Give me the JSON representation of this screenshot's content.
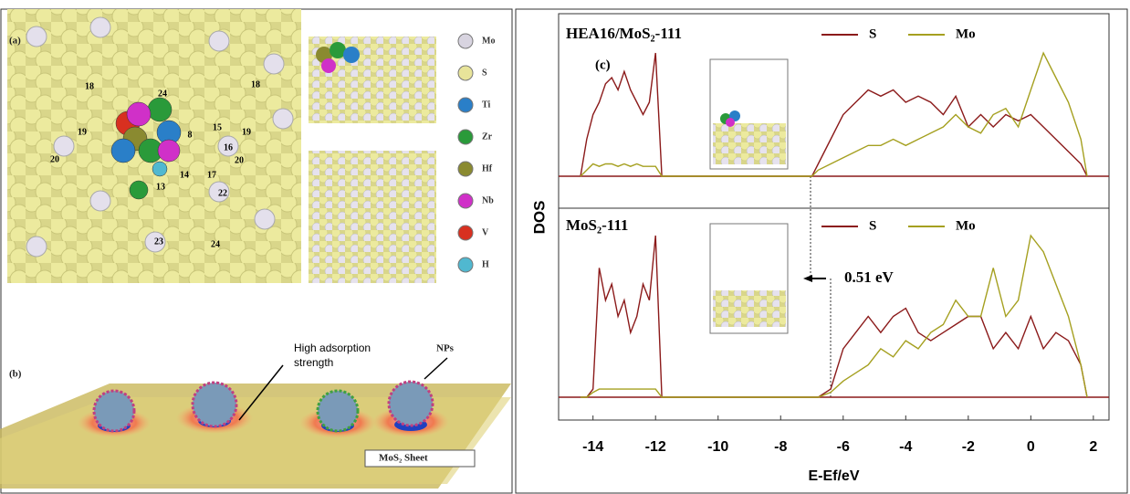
{
  "panel_a": {
    "label": "(a)",
    "site_labels": [
      "18",
      "24",
      "18",
      "19",
      "15",
      "19",
      "16",
      "20",
      "8",
      "17",
      "22",
      "14",
      "13",
      "20",
      "23",
      "24"
    ],
    "elements": [
      {
        "name": "Mo",
        "color": "#d8d4e0"
      },
      {
        "name": "S",
        "color": "#e8e49a"
      },
      {
        "name": "Ti",
        "color": "#2a7fc8"
      },
      {
        "name": "Zr",
        "color": "#2a9a3a"
      },
      {
        "name": "Hf",
        "color": "#8a8a30"
      },
      {
        "name": "Nb",
        "color": "#d030c8"
      },
      {
        "name": "V",
        "color": "#d83020"
      },
      {
        "name": "H",
        "color": "#50b8d0"
      }
    ]
  },
  "panel_b": {
    "label": "(b)",
    "annotation_lines": [
      "High adsorption",
      "strength"
    ],
    "particles_label": "NPs",
    "sheet_label": "MoS₂ Sheet"
  },
  "chart_data": [
    {
      "type": "line",
      "label": "(c)",
      "title": "HEA16/MoS₂-111",
      "x": [
        -14.4,
        -14.2,
        -14.0,
        -13.8,
        -13.6,
        -13.4,
        -13.2,
        -13.0,
        -12.8,
        -12.6,
        -12.4,
        -12.2,
        -12.0,
        -11.8,
        -7.0,
        -6.8,
        -6.4,
        -6.0,
        -5.6,
        -5.2,
        -4.8,
        -4.4,
        -4.0,
        -3.6,
        -3.2,
        -2.8,
        -2.4,
        -2.0,
        -1.6,
        -1.2,
        -0.8,
        -0.4,
        0.0,
        0.4,
        0.8,
        1.2,
        1.6,
        1.8
      ],
      "series": [
        {
          "name": "S",
          "color": "#8b1a1a",
          "values": [
            0,
            3,
            5,
            6,
            7.5,
            8,
            7,
            8.5,
            7,
            6,
            5,
            6,
            10,
            0,
            0,
            1,
            3,
            5,
            6,
            7,
            6.5,
            7,
            6,
            6.5,
            6,
            5,
            6.5,
            4,
            5,
            4,
            5,
            4.5,
            5,
            4,
            3,
            2,
            1,
            0
          ]
        },
        {
          "name": "Mo",
          "color": "#a5a020",
          "values": [
            0,
            0.5,
            1,
            0.8,
            1,
            1,
            0.8,
            1,
            0.8,
            1,
            0.8,
            0.8,
            0.8,
            0,
            0,
            0.5,
            1,
            1.5,
            2,
            2.5,
            2.5,
            3,
            2.5,
            3,
            3.5,
            4,
            5,
            4,
            3.5,
            5,
            5.5,
            4,
            7,
            10,
            8,
            6,
            3,
            0
          ]
        }
      ],
      "xlim": [
        -15.1,
        2.5
      ],
      "ylim": [
        0,
        10
      ]
    },
    {
      "type": "line",
      "title": "MoS₂-111",
      "xlabel": "E-Ef/eV",
      "ylabel": "DOS",
      "annotation": "0.51 eV",
      "x": [
        -14.4,
        -14.2,
        -14.0,
        -13.8,
        -13.6,
        -13.4,
        -13.2,
        -13.0,
        -12.8,
        -12.6,
        -12.4,
        -12.2,
        -12.0,
        -11.8,
        -7.0,
        -6.8,
        -6.4,
        -6.0,
        -5.6,
        -5.2,
        -4.8,
        -4.4,
        -4.0,
        -3.6,
        -3.2,
        -2.8,
        -2.4,
        -2.0,
        -1.6,
        -1.2,
        -0.8,
        -0.4,
        0.0,
        0.4,
        0.8,
        1.2,
        1.6,
        1.8
      ],
      "series": [
        {
          "name": "S",
          "color": "#8b1a1a",
          "values": [
            0,
            0,
            0.5,
            8,
            6,
            7,
            5,
            6,
            4,
            5,
            7,
            6,
            10,
            0,
            0,
            0,
            0.5,
            3,
            4,
            5,
            4,
            5,
            5.5,
            4,
            3.5,
            4,
            4.5,
            5,
            5,
            3,
            4,
            3,
            5,
            3,
            4,
            3.5,
            2,
            0
          ]
        },
        {
          "name": "Mo",
          "color": "#a5a020",
          "values": [
            0,
            0,
            0.3,
            0.5,
            0.5,
            0.5,
            0.5,
            0.5,
            0.5,
            0.5,
            0.5,
            0.5,
            0.5,
            0,
            0,
            0,
            0.3,
            1,
            1.5,
            2,
            3,
            2.5,
            3.5,
            3,
            4,
            4.5,
            6,
            5,
            5,
            8,
            5,
            6,
            10,
            9,
            7,
            5,
            2,
            0
          ]
        }
      ],
      "xlim": [
        -15.1,
        2.5
      ],
      "ylim": [
        0,
        10
      ],
      "xticks": [
        -14,
        -12,
        -10,
        -8,
        -6,
        -4,
        -2,
        0,
        2
      ]
    }
  ]
}
